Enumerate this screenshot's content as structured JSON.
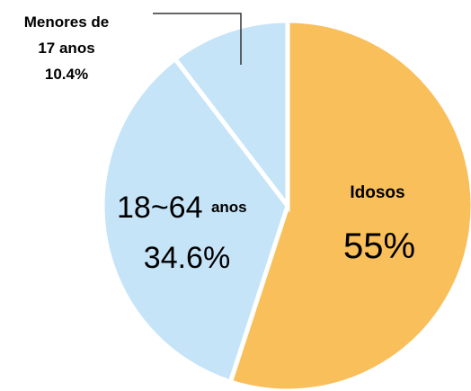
{
  "chart_data": {
    "type": "pie",
    "categories": [
      "Idosos",
      "18~64 anos",
      "Menores de 17 anos"
    ],
    "values": [
      55,
      34.6,
      10.4
    ],
    "value_labels": [
      "55%",
      "34.6%",
      "10.4%"
    ],
    "colors": [
      "#f9bf5a",
      "#c6e4f8",
      "#c6e4f8"
    ]
  }
}
